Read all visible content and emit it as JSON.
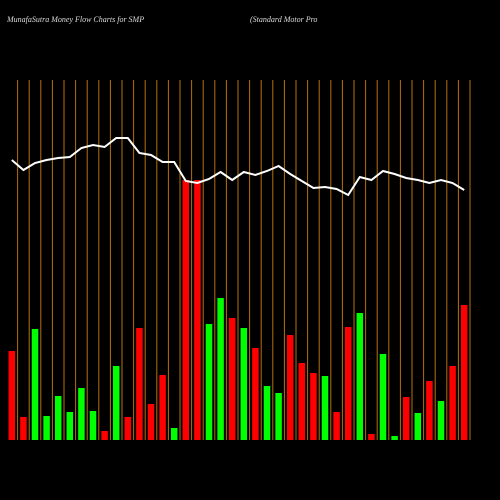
{
  "chart_data": {
    "type": "bar",
    "title": "MunafaSutra  Money Flow  Charts for SMP",
    "subtitle": "(Standard Motor Pro",
    "values": [
      89,
      23,
      111,
      24,
      44,
      28,
      52,
      29,
      9,
      74,
      23,
      112,
      36,
      65,
      12,
      260,
      260,
      116,
      142,
      122,
      112,
      92,
      54,
      47,
      105,
      77,
      67,
      64,
      28,
      113,
      127,
      6,
      86,
      4,
      43,
      27,
      59,
      39,
      74,
      135
    ],
    "colors": [
      "#ff0000",
      "#ff0000",
      "#00ff00",
      "#00ff00",
      "#00ff00",
      "#00ff00",
      "#00ff00",
      "#00ff00",
      "#ff0000",
      "#00ff00",
      "#ff0000",
      "#ff0000",
      "#ff0000",
      "#ff0000",
      "#00ff00",
      "#ff0000",
      "#ff0000",
      "#00ff00",
      "#00ff00",
      "#ff0000",
      "#00ff00",
      "#ff0000",
      "#00ff00",
      "#00ff00",
      "#ff0000",
      "#ff0000",
      "#ff0000",
      "#00ff00",
      "#ff0000",
      "#ff0000",
      "#00ff00",
      "#ff0000",
      "#00ff00",
      "#00ff00",
      "#ff0000",
      "#00ff00",
      "#ff0000",
      "#00ff00",
      "#ff0000",
      "#ff0000"
    ],
    "line": {
      "color": "#ffffff",
      "values": [
        280,
        270,
        277,
        280,
        282,
        283,
        292,
        295,
        293,
        302,
        302,
        287,
        285,
        278,
        278,
        259,
        257,
        261,
        268,
        260,
        268,
        265,
        269,
        274,
        266,
        259,
        252,
        253,
        251,
        245,
        263,
        260,
        269,
        266,
        262,
        260,
        257,
        260,
        257,
        250
      ]
    },
    "divider_color": "#b8700a",
    "ylim": [
      0,
      360
    ]
  }
}
